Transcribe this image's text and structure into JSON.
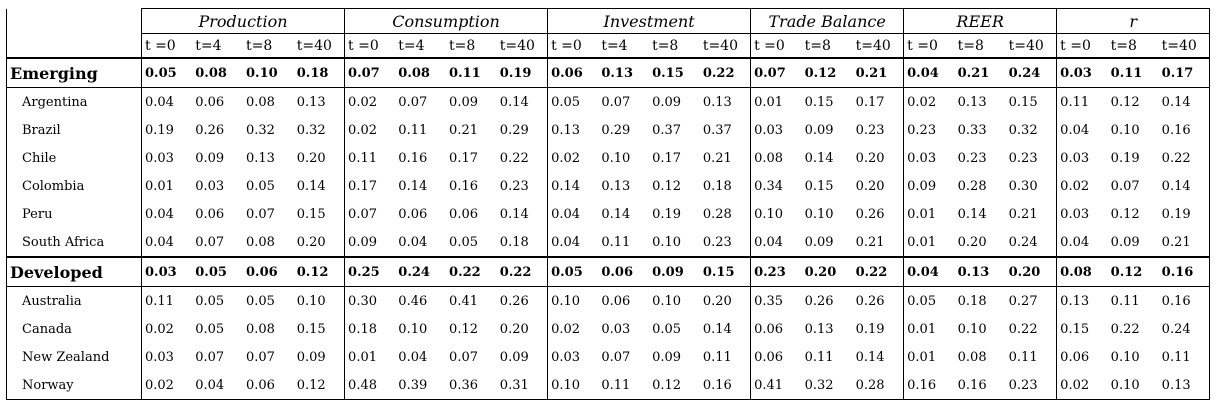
{
  "groups": [
    {
      "label": "Production",
      "periods": [
        "t =0",
        "t=4",
        "t=8",
        "t=40"
      ]
    },
    {
      "label": "Consumption",
      "periods": [
        "t =0",
        "t=4",
        "t=8",
        "t=40"
      ]
    },
    {
      "label": "Investment",
      "periods": [
        "t =0",
        "t=4",
        "t=8",
        "t=40"
      ]
    },
    {
      "label": "Trade Balance",
      "periods": [
        "t =0",
        "t=8",
        "t=40"
      ]
    },
    {
      "label": "REER",
      "periods": [
        "t =0",
        "t=8",
        "t=40"
      ]
    },
    {
      "label": "r",
      "periods": [
        "t =0",
        "t=8",
        "t=40"
      ]
    }
  ],
  "sections": [
    {
      "name": "Emerging",
      "summary": [
        "0.05",
        "0.08",
        "0.10",
        "0.18",
        "0.07",
        "0.08",
        "0.11",
        "0.19",
        "0.06",
        "0.13",
        "0.15",
        "0.22",
        "0.07",
        "0.12",
        "0.21",
        "0.04",
        "0.21",
        "0.24",
        "0.03",
        "0.11",
        "0.17"
      ],
      "rows": [
        {
          "name": "Argentina",
          "values": [
            "0.04",
            "0.06",
            "0.08",
            "0.13",
            "0.02",
            "0.07",
            "0.09",
            "0.14",
            "0.05",
            "0.07",
            "0.09",
            "0.13",
            "0.01",
            "0.15",
            "0.17",
            "0.02",
            "0.13",
            "0.15",
            "0.11",
            "0.12",
            "0.14"
          ]
        },
        {
          "name": "Brazil",
          "values": [
            "0.19",
            "0.26",
            "0.32",
            "0.32",
            "0.02",
            "0.11",
            "0.21",
            "0.29",
            "0.13",
            "0.29",
            "0.37",
            "0.37",
            "0.03",
            "0.09",
            "0.23",
            "0.23",
            "0.33",
            "0.32",
            "0.04",
            "0.10",
            "0.16"
          ]
        },
        {
          "name": "Chile",
          "values": [
            "0.03",
            "0.09",
            "0.13",
            "0.20",
            "0.11",
            "0.16",
            "0.17",
            "0.22",
            "0.02",
            "0.10",
            "0.17",
            "0.21",
            "0.08",
            "0.14",
            "0.20",
            "0.03",
            "0.23",
            "0.23",
            "0.03",
            "0.19",
            "0.22"
          ]
        },
        {
          "name": "Colombia",
          "values": [
            "0.01",
            "0.03",
            "0.05",
            "0.14",
            "0.17",
            "0.14",
            "0.16",
            "0.23",
            "0.14",
            "0.13",
            "0.12",
            "0.18",
            "0.34",
            "0.15",
            "0.20",
            "0.09",
            "0.28",
            "0.30",
            "0.02",
            "0.07",
            "0.14"
          ]
        },
        {
          "name": "Peru",
          "values": [
            "0.04",
            "0.06",
            "0.07",
            "0.15",
            "0.07",
            "0.06",
            "0.06",
            "0.14",
            "0.04",
            "0.14",
            "0.19",
            "0.28",
            "0.10",
            "0.10",
            "0.26",
            "0.01",
            "0.14",
            "0.21",
            "0.03",
            "0.12",
            "0.19"
          ]
        },
        {
          "name": "South Africa",
          "values": [
            "0.04",
            "0.07",
            "0.08",
            "0.20",
            "0.09",
            "0.04",
            "0.05",
            "0.18",
            "0.04",
            "0.11",
            "0.10",
            "0.23",
            "0.04",
            "0.09",
            "0.21",
            "0.01",
            "0.20",
            "0.24",
            "0.04",
            "0.09",
            "0.21"
          ]
        }
      ]
    },
    {
      "name": "Developed",
      "summary": [
        "0.03",
        "0.05",
        "0.06",
        "0.12",
        "0.25",
        "0.24",
        "0.22",
        "0.22",
        "0.05",
        "0.06",
        "0.09",
        "0.15",
        "0.23",
        "0.20",
        "0.22",
        "0.04",
        "0.13",
        "0.20",
        "0.08",
        "0.12",
        "0.16"
      ],
      "rows": [
        {
          "name": "Australia",
          "values": [
            "0.11",
            "0.05",
            "0.05",
            "0.10",
            "0.30",
            "0.46",
            "0.41",
            "0.26",
            "0.10",
            "0.06",
            "0.10",
            "0.20",
            "0.35",
            "0.26",
            "0.26",
            "0.05",
            "0.18",
            "0.27",
            "0.13",
            "0.11",
            "0.16"
          ]
        },
        {
          "name": "Canada",
          "values": [
            "0.02",
            "0.05",
            "0.08",
            "0.15",
            "0.18",
            "0.10",
            "0.12",
            "0.20",
            "0.02",
            "0.03",
            "0.05",
            "0.14",
            "0.06",
            "0.13",
            "0.19",
            "0.01",
            "0.10",
            "0.22",
            "0.15",
            "0.22",
            "0.24"
          ]
        },
        {
          "name": "New Zealand",
          "values": [
            "0.03",
            "0.07",
            "0.07",
            "0.09",
            "0.01",
            "0.04",
            "0.07",
            "0.09",
            "0.03",
            "0.07",
            "0.09",
            "0.11",
            "0.06",
            "0.11",
            "0.14",
            "0.01",
            "0.08",
            "0.11",
            "0.06",
            "0.10",
            "0.11"
          ]
        },
        {
          "name": "Norway",
          "values": [
            "0.02",
            "0.04",
            "0.06",
            "0.12",
            "0.48",
            "0.39",
            "0.36",
            "0.31",
            "0.10",
            "0.11",
            "0.12",
            "0.16",
            "0.41",
            "0.32",
            "0.28",
            "0.16",
            "0.16",
            "0.23",
            "0.02",
            "0.10",
            "0.13"
          ]
        }
      ]
    }
  ]
}
